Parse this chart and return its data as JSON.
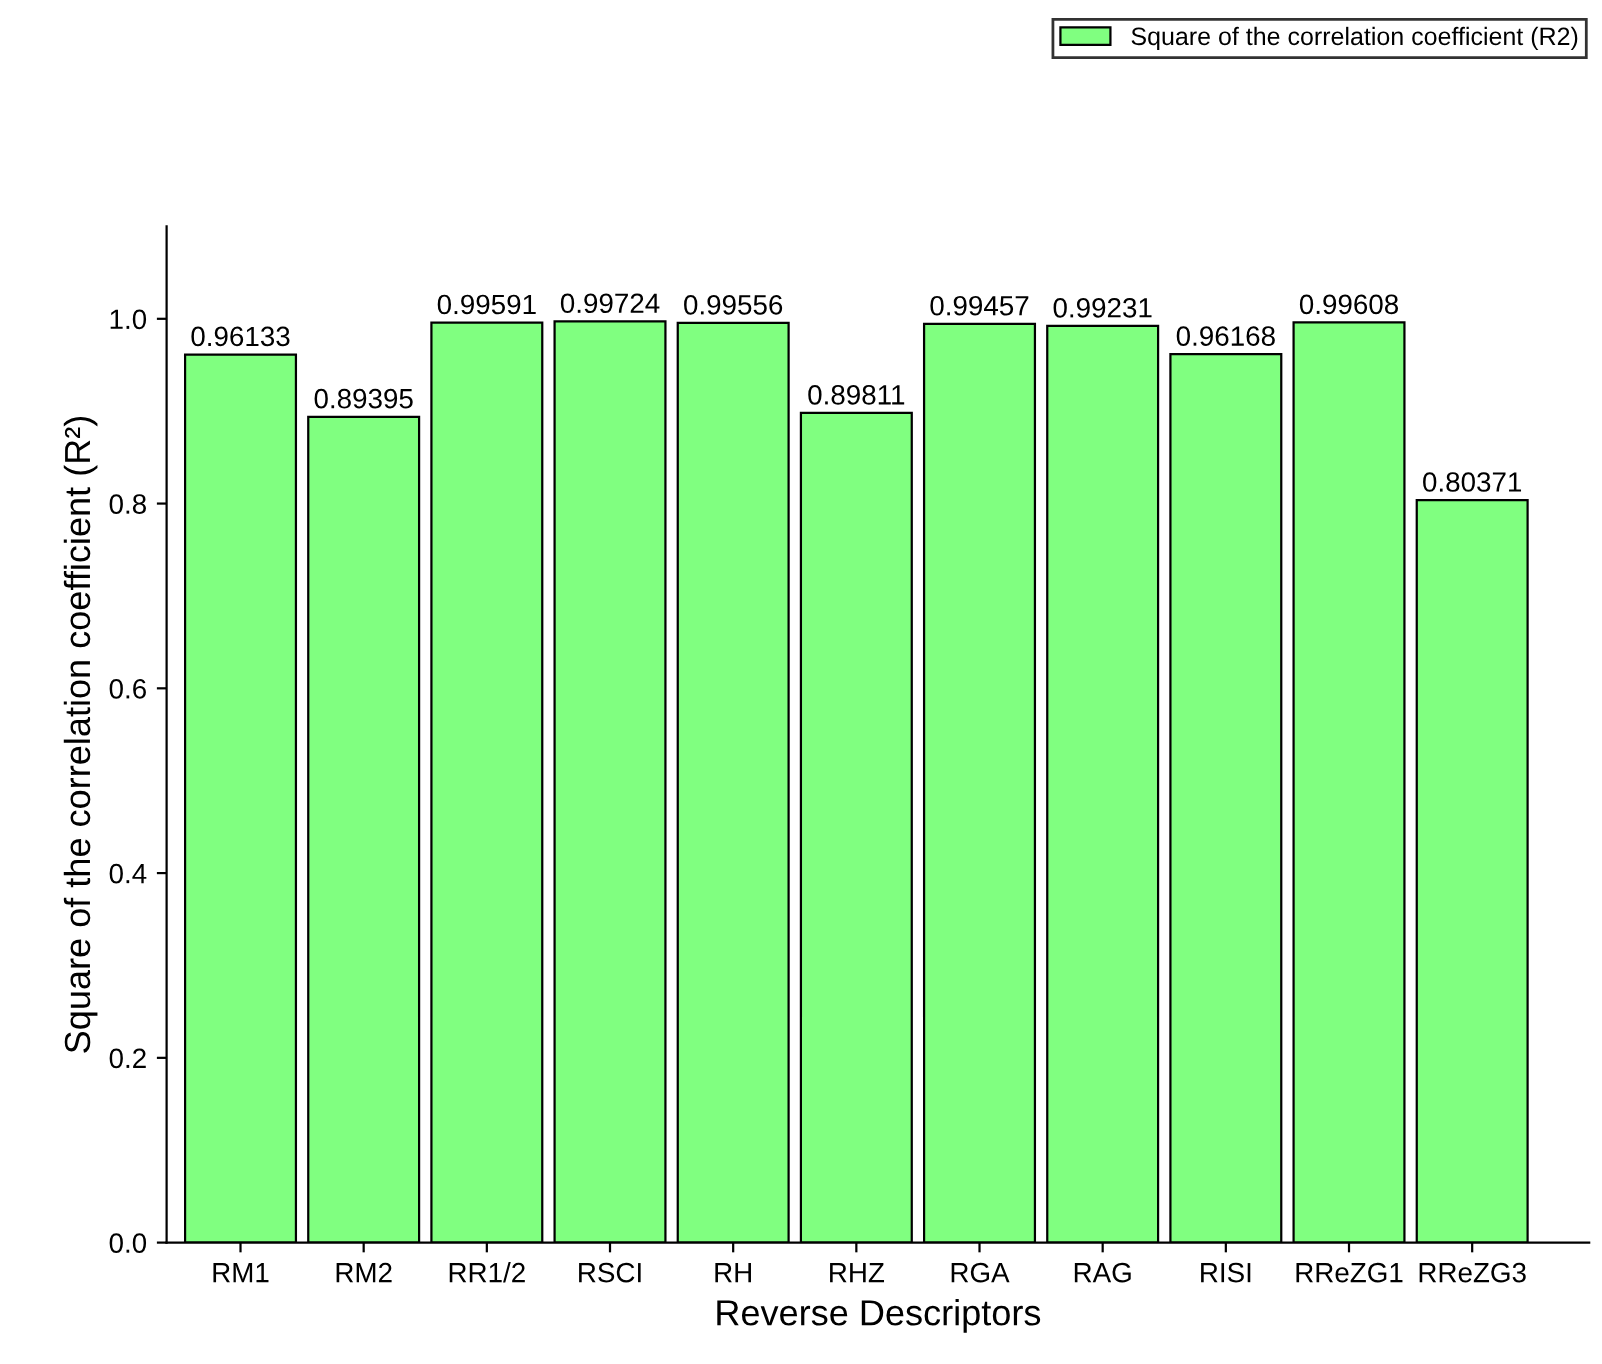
{
  "chart_data": {
    "type": "bar",
    "xlabel": "Reverse Descriptors",
    "ylabel": "Square of the correlation coefficient (R²)",
    "categories": [
      "RM1",
      "RM2",
      "RR1/2",
      "RSCI",
      "RH",
      "RHZ",
      "RGA",
      "RAG",
      "RISI",
      "RReZG1",
      "RReZG3"
    ],
    "series": [
      {
        "name": "Square of the correlation coefficient (R2)",
        "color": "#80ff80",
        "values": [
          0.96133,
          0.89395,
          0.99591,
          0.99724,
          0.99556,
          0.89811,
          0.99457,
          0.99231,
          0.96168,
          0.99608,
          0.80371
        ]
      }
    ],
    "ylim": [
      0,
      1.1
    ],
    "yticks": [
      {
        "value": 0,
        "label": "0.0"
      },
      0.2,
      0.4,
      0.6,
      0.8,
      {
        "value": 1,
        "label": "1.0"
      }
    ],
    "data_labels": true,
    "legend": "top right",
    "grid": false
  }
}
